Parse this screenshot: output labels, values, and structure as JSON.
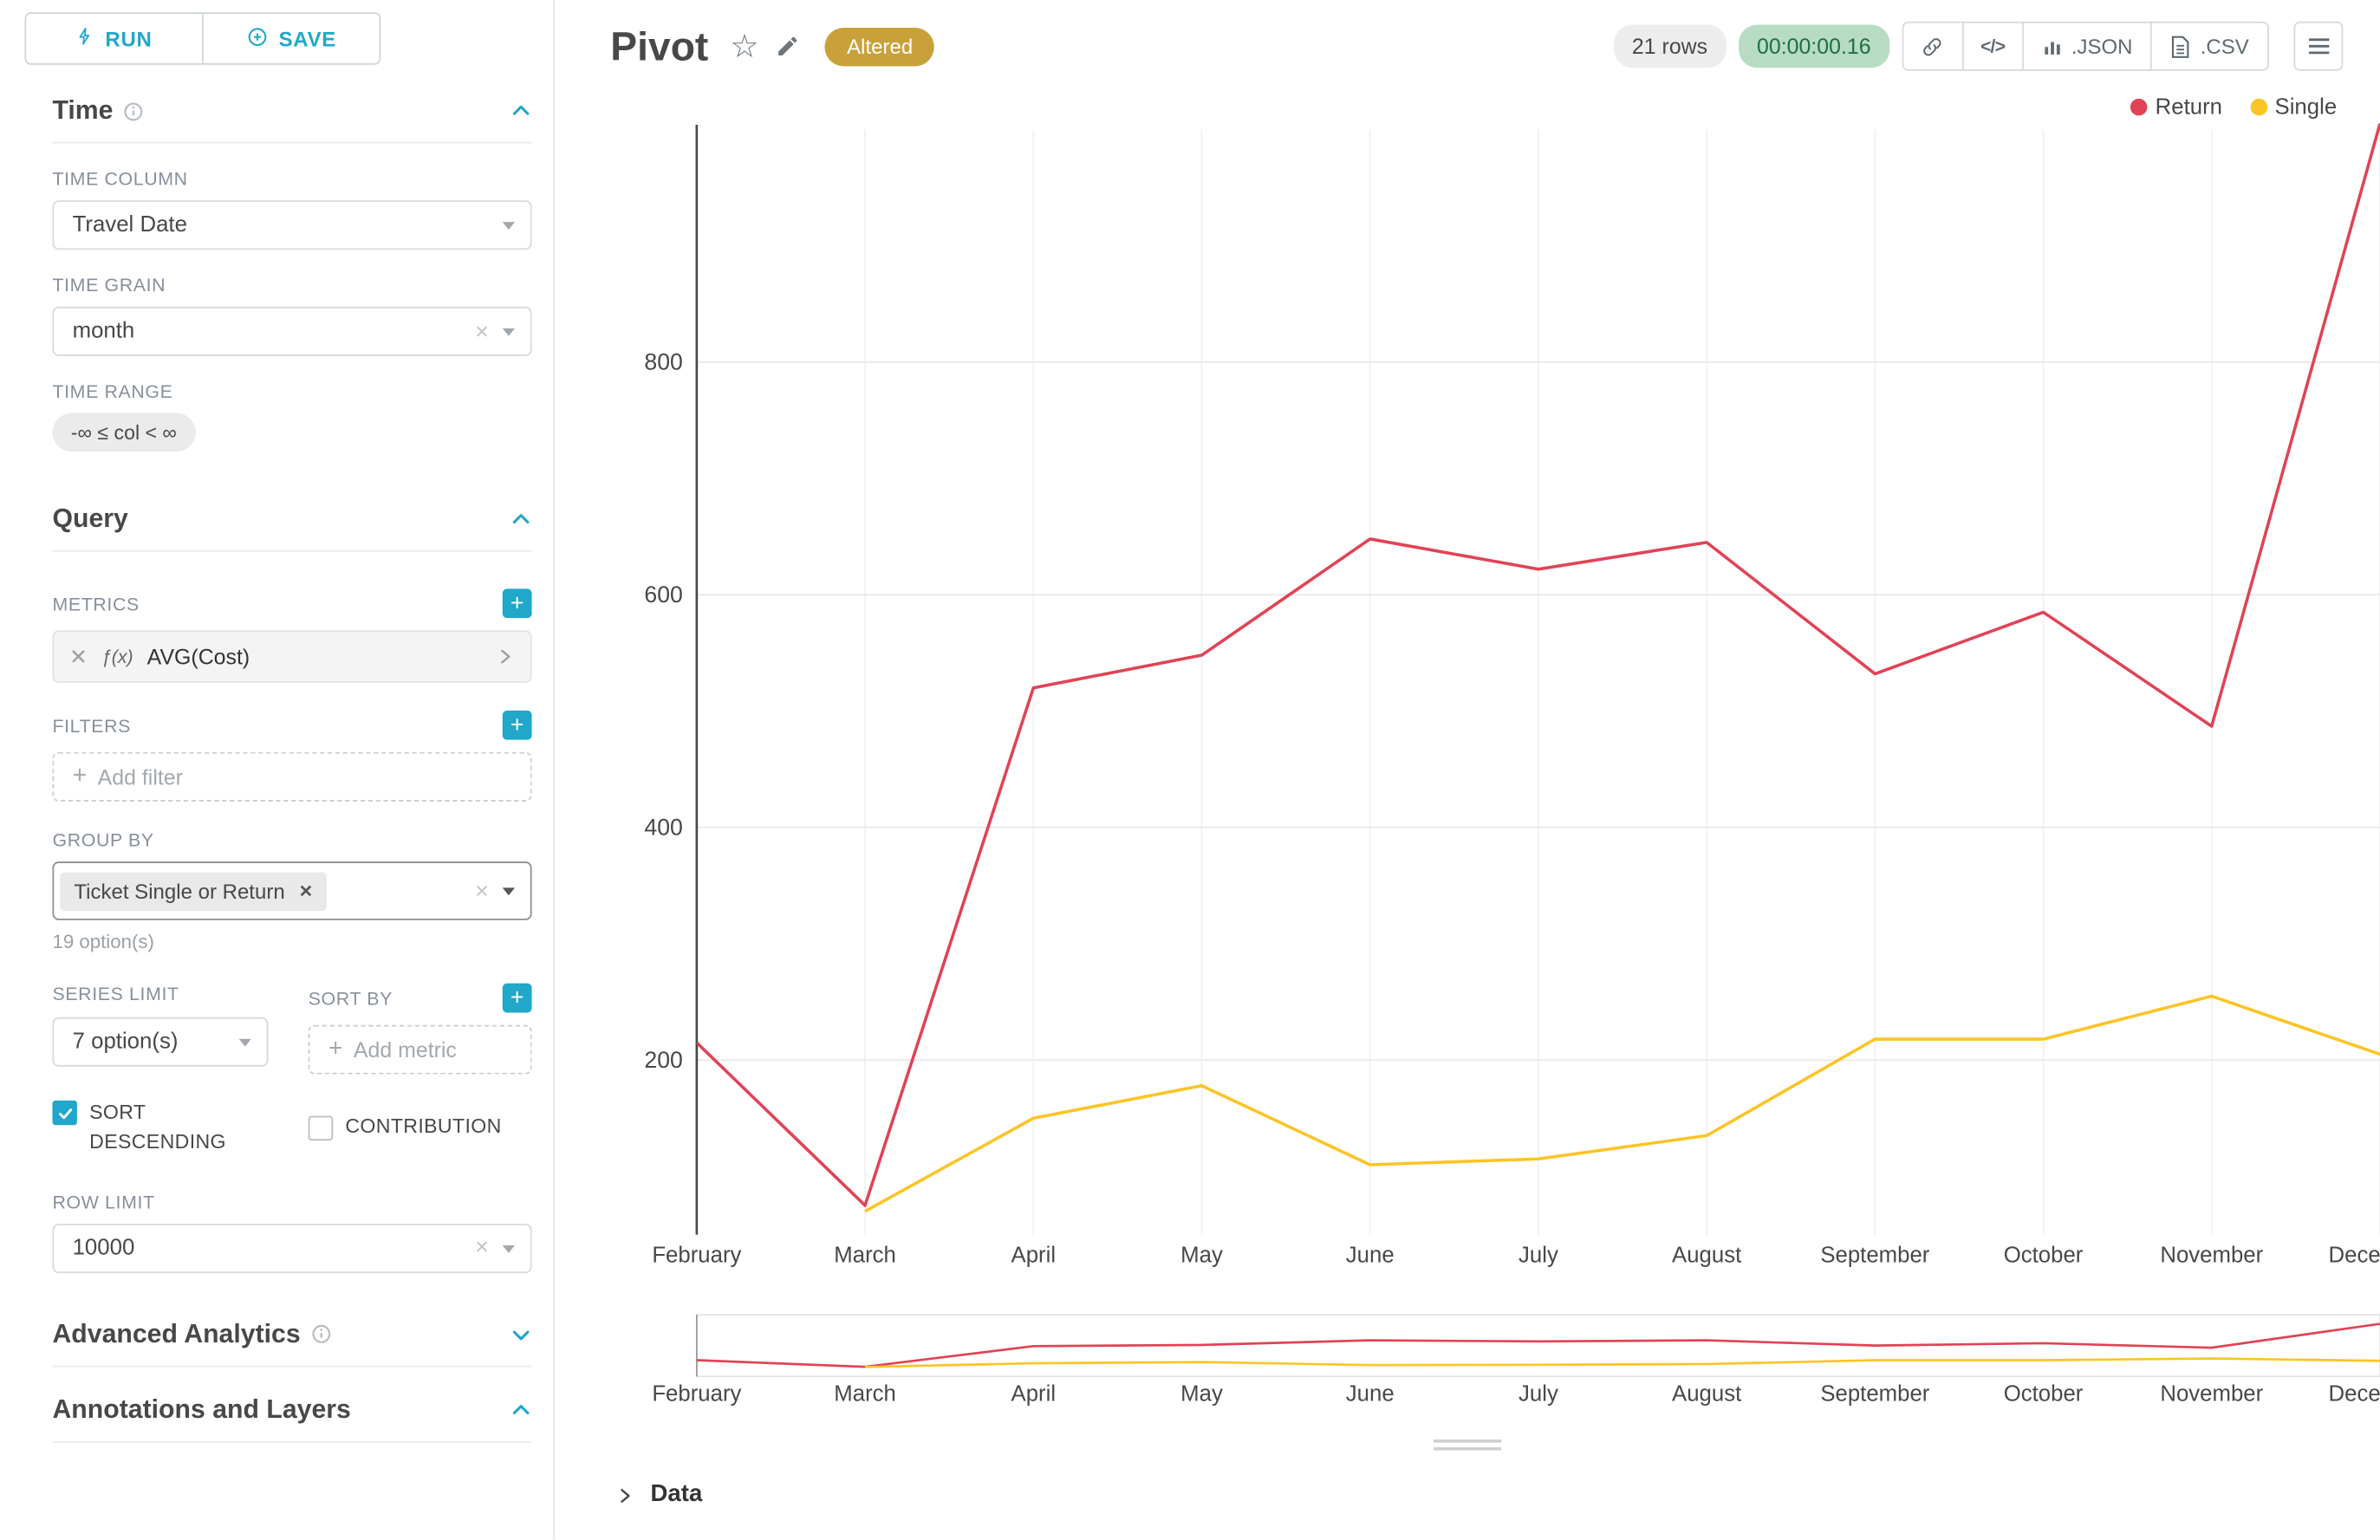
{
  "colors": {
    "accent": "#20a7c9",
    "return_series": "#e04355",
    "single_series": "#fcc425",
    "altered_badge": "#c9a13b",
    "timer_bg": "#b7dcc3",
    "timer_text": "#1e6e44"
  },
  "toolbar": {
    "run": "RUN",
    "save": "SAVE"
  },
  "sidebar": {
    "time": {
      "title": "Time",
      "column_label": "TIME COLUMN",
      "column_value": "Travel Date",
      "grain_label": "TIME GRAIN",
      "grain_value": "month",
      "range_label": "TIME RANGE",
      "range_value": "-∞ ≤ col < ∞"
    },
    "query": {
      "title": "Query",
      "metrics_label": "METRICS",
      "metric_fx": "ƒ(x)",
      "metric_value": "AVG(Cost)",
      "filters_label": "FILTERS",
      "add_filter_label": "Add filter",
      "group_by_label": "GROUP BY",
      "group_by_chip": "Ticket Single or Return",
      "options_hint": "19 option(s)",
      "series_limit_label": "SERIES LIMIT",
      "series_limit_value": "7 option(s)",
      "sort_by_label": "SORT BY",
      "add_metric_label": "Add metric",
      "sort_descending_label": "SORT DESCENDING",
      "contribution_label": "CONTRIBUTION",
      "row_limit_label": "ROW LIMIT",
      "row_limit_value": "10000"
    },
    "advanced_analytics_title": "Advanced Analytics",
    "annotations_title": "Annotations and Layers"
  },
  "header": {
    "title": "Pivot",
    "altered": "Altered",
    "rows": "21 rows",
    "timer": "00:00:00.16",
    "json": ".JSON",
    "csv": ".CSV"
  },
  "chart_data": {
    "type": "line",
    "title": "",
    "x": [
      "February",
      "March",
      "April",
      "May",
      "June",
      "July",
      "August",
      "September",
      "October",
      "November",
      "December"
    ],
    "series": [
      {
        "name": "Return",
        "color": "#e04355",
        "values": [
          215,
          75,
          520,
          548,
          648,
          622,
          645,
          532,
          585,
          487,
          1005
        ]
      },
      {
        "name": "Single",
        "color": "#fcc425",
        "values": [
          null,
          70,
          150,
          178,
          110,
          115,
          135,
          218,
          218,
          255,
          205
        ]
      }
    ],
    "xlabel": "",
    "ylabel": "",
    "ylim": [
      50,
      1000
    ],
    "yticks": [
      200,
      400,
      600,
      800
    ],
    "grid": true,
    "legend_position": "top-right",
    "has_mini_overview": true
  },
  "data_panel": {
    "title": "Data"
  }
}
